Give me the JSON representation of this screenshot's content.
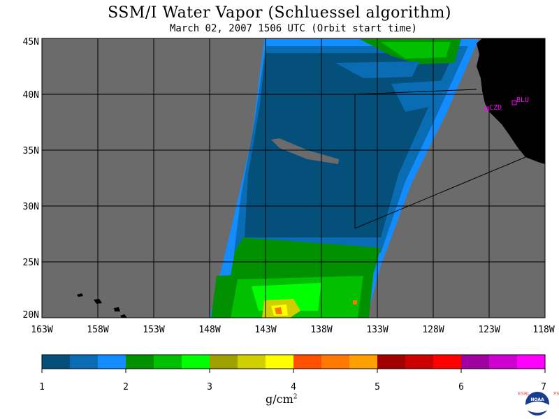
{
  "header": {
    "title": "SSM/I Water Vapor (Schluessel algorithm)",
    "subtitle": "March 02, 2007  1506 UTC  (Orbit start time)"
  },
  "map": {
    "lon_labels": [
      "163W",
      "158W",
      "153W",
      "148W",
      "143W",
      "138W",
      "133W",
      "128W",
      "123W",
      "118W"
    ],
    "lat_labels": [
      "45N",
      "40N",
      "35N",
      "30N",
      "25N",
      "20N"
    ],
    "lon_range": [
      -163,
      -118
    ],
    "lat_range": [
      20,
      45
    ],
    "stations": [
      {
        "name": "CZD",
        "lon": -123.2,
        "lat": 38.6
      },
      {
        "name": "BLU",
        "lon": -120.9,
        "lat": 39.3
      }
    ],
    "colors": {
      "background_gray": "#6b6b6b",
      "land": "#000000",
      "station": "#ff00ff"
    }
  },
  "colorbar": {
    "ticks": [
      "1",
      "2",
      "3",
      "4",
      "5",
      "6",
      "7"
    ],
    "colors": [
      "#04507a",
      "#0a6cb2",
      "#128cff",
      "#009000",
      "#00c000",
      "#00ff00",
      "#a0a000",
      "#d0d000",
      "#ffff00",
      "#ff5000",
      "#ff7800",
      "#ffa000",
      "#a00000",
      "#cc0000",
      "#ff0000",
      "#a000a0",
      "#d000d0",
      "#ff00ff"
    ],
    "units_base": "g/cm",
    "units_exp": "2"
  },
  "logo": {
    "left_text": "ESRL",
    "right_text": "PSD",
    "center_text": "NOAA"
  }
}
